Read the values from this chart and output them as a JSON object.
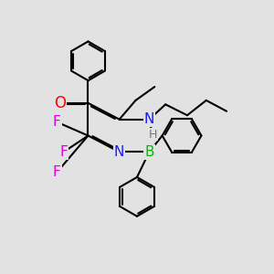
{
  "bg_color": "#e2e2e2",
  "colors": {
    "C": "#000000",
    "O": "#ff0000",
    "N": "#1a1aff",
    "F": "#dd00dd",
    "B": "#00bb00",
    "H": "#777777",
    "bond": "#000000"
  },
  "bw": 1.5,
  "ring_r": 0.72,
  "dbo": 0.055
}
